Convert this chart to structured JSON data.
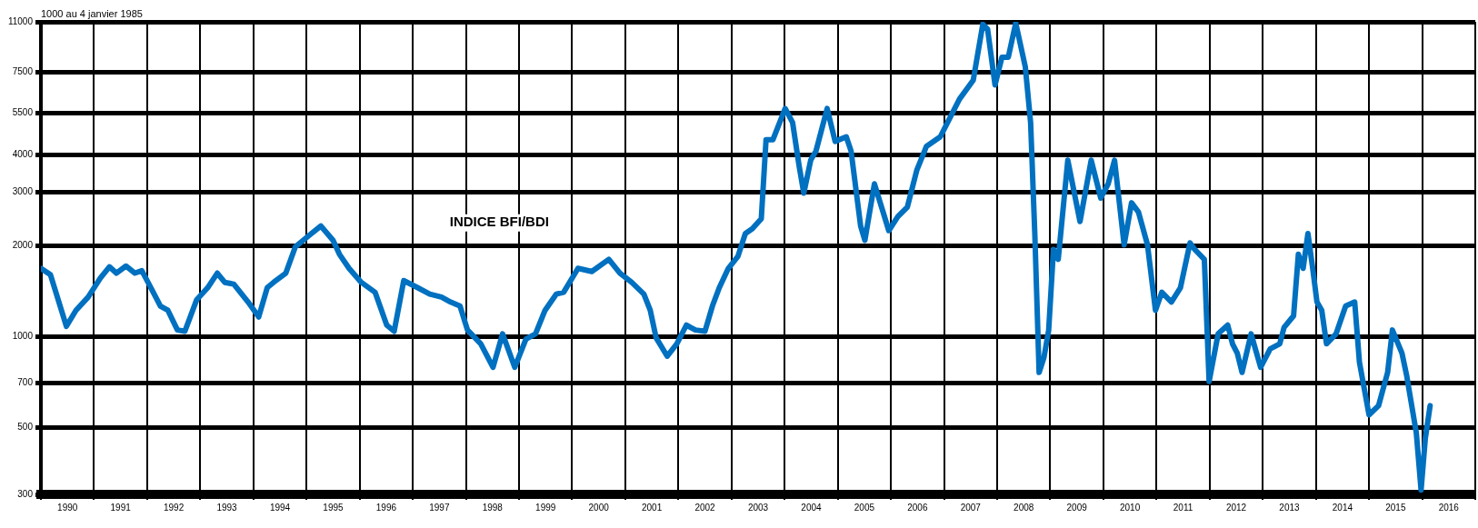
{
  "chart_data": {
    "type": "line",
    "annotations": [
      "1000 au 4 janvier 1985"
    ],
    "xlim": [
      1990,
      2017
    ],
    "xticks": [
      {
        "value": 1990,
        "label": null
      },
      {
        "value": 1990.5,
        "label": "1990"
      },
      {
        "value": 1991,
        "label": null
      },
      {
        "value": 1991.5,
        "label": "1991"
      },
      {
        "value": 1992,
        "label": null
      },
      {
        "value": 1992.5,
        "label": "1992"
      },
      {
        "value": 1993,
        "label": null
      },
      {
        "value": 1993.5,
        "label": "1993"
      },
      {
        "value": 1994,
        "label": null
      },
      {
        "value": 1994.5,
        "label": "1994"
      },
      {
        "value": 1995,
        "label": null
      },
      {
        "value": 1995.5,
        "label": "1995"
      },
      {
        "value": 1996,
        "label": null
      },
      {
        "value": 1996.5,
        "label": "1996"
      },
      {
        "value": 1997,
        "label": null
      },
      {
        "value": 1997.5,
        "label": "1997"
      },
      {
        "value": 1998,
        "label": null
      },
      {
        "value": 1998.5,
        "label": "1998"
      },
      {
        "value": 1999,
        "label": null
      },
      {
        "value": 1999.5,
        "label": "1999"
      },
      {
        "value": 2000,
        "label": null
      },
      {
        "value": 2000.5,
        "label": "2000"
      },
      {
        "value": 2001,
        "label": null
      },
      {
        "value": 2001.5,
        "label": "2001"
      },
      {
        "value": 2002,
        "label": null
      },
      {
        "value": 2002.5,
        "label": "2002"
      },
      {
        "value": 2003,
        "label": null
      },
      {
        "value": 2003.5,
        "label": "2003"
      },
      {
        "value": 2004,
        "label": null
      },
      {
        "value": 2004.5,
        "label": "2004"
      },
      {
        "value": 2005,
        "label": null
      },
      {
        "value": 2005.5,
        "label": "2005"
      },
      {
        "value": 2006,
        "label": null
      },
      {
        "value": 2006.5,
        "label": "2006"
      },
      {
        "value": 2007,
        "label": null
      },
      {
        "value": 2007.5,
        "label": "2007"
      },
      {
        "value": 2008,
        "label": null
      },
      {
        "value": 2008.5,
        "label": "2008"
      },
      {
        "value": 2009,
        "label": null
      },
      {
        "value": 2009.5,
        "label": "2009"
      },
      {
        "value": 2010,
        "label": null
      },
      {
        "value": 2010.5,
        "label": "2010"
      },
      {
        "value": 2011,
        "label": null
      },
      {
        "value": 2011.5,
        "label": "2011"
      },
      {
        "value": 2012,
        "label": null
      },
      {
        "value": 2012.5,
        "label": "2012"
      },
      {
        "value": 2013,
        "label": null
      },
      {
        "value": 2013.5,
        "label": "2013"
      },
      {
        "value": 2014,
        "label": null
      },
      {
        "value": 2014.5,
        "label": "2014"
      },
      {
        "value": 2015,
        "label": null
      },
      {
        "value": 2015.5,
        "label": "2015"
      },
      {
        "value": 2016,
        "label": null
      },
      {
        "value": 2016.5,
        "label": "2016"
      },
      {
        "value": 2017,
        "label": null
      }
    ],
    "ylim": [
      300,
      11000
    ],
    "yticks": [
      300,
      500,
      700,
      1000,
      2000,
      3000,
      4000,
      5500,
      7500,
      11000
    ],
    "log": "y",
    "grid": true,
    "legend": false,
    "marker": "none",
    "line_style": "solid",
    "series": [
      {
        "name": "INDICE BFI/BDI",
        "color": "#0070c0",
        "x": [
          1990.0,
          1990.18,
          1990.48,
          1990.66,
          1990.89,
          1991.12,
          1991.29,
          1991.42,
          1991.6,
          1991.77,
          1991.9,
          1992.07,
          1992.25,
          1992.39,
          1992.57,
          1992.71,
          1992.93,
          1993.14,
          1993.32,
          1993.46,
          1993.63,
          1993.9,
          1994.1,
          1994.26,
          1994.38,
          1994.61,
          1994.79,
          1995.05,
          1995.27,
          1995.5,
          1995.62,
          1995.8,
          1996.03,
          1996.29,
          1996.51,
          1996.65,
          1996.83,
          1997.09,
          1997.32,
          1997.54,
          1997.71,
          1997.89,
          1998.03,
          1998.28,
          1998.51,
          1998.69,
          1998.92,
          1999.13,
          1999.31,
          1999.49,
          1999.7,
          1999.84,
          2000.11,
          2000.37,
          2000.69,
          2000.9,
          2001.12,
          2001.35,
          2001.47,
          2001.58,
          2001.79,
          2001.97,
          2002.15,
          2002.32,
          2002.5,
          2002.64,
          2002.77,
          2002.94,
          2003.12,
          2003.26,
          2003.39,
          2003.56,
          2003.65,
          2003.78,
          2004.01,
          2004.15,
          2004.27,
          2004.36,
          2004.49,
          2004.59,
          2004.8,
          2004.95,
          2005.16,
          2005.25,
          2005.43,
          2005.51,
          2005.69,
          2005.96,
          2006.13,
          2006.31,
          2006.49,
          2006.67,
          2006.93,
          2007.02,
          2007.29,
          2007.55,
          2007.73,
          2007.82,
          2007.96,
          2008.09,
          2008.21,
          2008.35,
          2008.53,
          2008.63,
          2008.71,
          2008.79,
          2008.88,
          2008.97,
          2009.06,
          2009.15,
          2009.33,
          2009.56,
          2009.77,
          2009.95,
          2010.09,
          2010.21,
          2010.39,
          2010.53,
          2010.66,
          2010.83,
          2010.98,
          2011.1,
          2011.28,
          2011.45,
          2011.63,
          2011.72,
          2011.9,
          2011.99,
          2012.16,
          2012.34,
          2012.43,
          2012.52,
          2012.61,
          2012.78,
          2012.96,
          2013.14,
          2013.32,
          2013.4,
          2013.58,
          2013.67,
          2013.76,
          2013.85,
          2013.94,
          2014.02,
          2014.11,
          2014.2,
          2014.38,
          2014.56,
          2014.73,
          2014.82,
          2015.0,
          2015.18,
          2015.35,
          2015.44,
          2015.62,
          2015.71,
          2015.89,
          2015.98,
          2016.06,
          2016.15
        ],
        "values": [
          1680,
          1600,
          1080,
          1220,
          1350,
          1560,
          1700,
          1620,
          1710,
          1620,
          1650,
          1450,
          1260,
          1220,
          1050,
          1040,
          1320,
          1450,
          1620,
          1510,
          1490,
          1300,
          1160,
          1450,
          1510,
          1620,
          1980,
          2160,
          2320,
          2080,
          1870,
          1680,
          1510,
          1400,
          1090,
          1040,
          1530,
          1450,
          1380,
          1350,
          1300,
          1260,
          1050,
          945,
          790,
          1020,
          790,
          980,
          1020,
          1220,
          1380,
          1400,
          1680,
          1640,
          1800,
          1620,
          1510,
          1380,
          1220,
          990,
          860,
          945,
          1090,
          1050,
          1040,
          1260,
          1450,
          1680,
          1840,
          2190,
          2270,
          2450,
          4480,
          4480,
          5680,
          5100,
          3690,
          2980,
          3830,
          4110,
          5680,
          4420,
          4580,
          4110,
          2320,
          2080,
          3200,
          2240,
          2490,
          2680,
          3560,
          4260,
          4580,
          4920,
          6100,
          7050,
          10800,
          10400,
          6800,
          8400,
          8400,
          10900,
          7800,
          5100,
          2160,
          760,
          850,
          1050,
          1940,
          1800,
          3830,
          2400,
          3830,
          2870,
          3200,
          3830,
          2010,
          2770,
          2580,
          2010,
          1220,
          1400,
          1300,
          1450,
          2040,
          1940,
          1800,
          710,
          1020,
          1090,
          945,
          880,
          760,
          1020,
          790,
          910,
          945,
          1070,
          1170,
          1870,
          1680,
          2190,
          1680,
          1300,
          1220,
          945,
          1020,
          1260,
          1300,
          820,
          550,
          590,
          760,
          1050,
          880,
          740,
          480,
          310,
          460,
          590
        ]
      }
    ]
  }
}
